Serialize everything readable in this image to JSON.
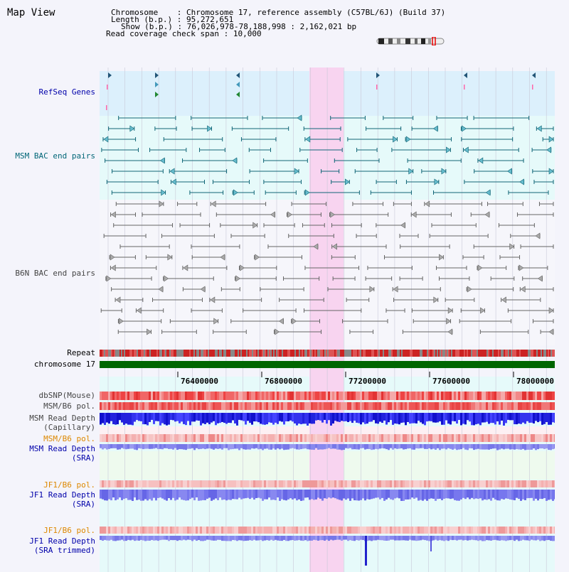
{
  "title": "Map View",
  "header": {
    "chromosome_label": "Chromosome",
    "chromosome_value": "Chromosome 17, reference assembly (C57BL/6J) (Build 37)",
    "length_label": "Length (b.p.)",
    "length_value": "95,272,651",
    "show_label": "Show (b.p.)",
    "show_value": "76,026,978-78,188,998 : 2,162,021 bp",
    "coverage_label": "Read coverage check span",
    "coverage_value": "10,000"
  },
  "tracks": {
    "refseq": "RefSeq Genes",
    "msm_bac": "MSM BAC end pairs",
    "b6n_bac": "B6N BAC end pairs",
    "repeat": "Repeat",
    "chromosome": "chromosome 17",
    "dbsnp": "dbSNP(Mouse)",
    "msm_b6_pol_1": "MSM/B6 pol.",
    "msm_read_depth_cap_1": "MSM Read Depth",
    "msm_read_depth_cap_2": "(Capillary)",
    "msm_b6_pol_2": "MSM/B6 pol.",
    "msm_read_depth_sra_1": "MSM Read Depth",
    "msm_read_depth_sra_2": "(SRA)",
    "jf1_b6_pol_1": "JF1/B6 pol.",
    "jf1_read_depth_sra_1": "JF1 Read Depth",
    "jf1_read_depth_sra_2": "(SRA)",
    "jf1_b6_pol_2": "JF1/B6 pol.",
    "jf1_read_depth_trim_1": "JF1 Read Depth",
    "jf1_read_depth_trim_2": "(SRA trimmed)"
  },
  "axis": {
    "ticks": [
      "76400000",
      "76800000",
      "77200000",
      "77600000",
      "78000000"
    ]
  },
  "colors": {
    "blue_label": "#0000aa",
    "teal_label": "#006677",
    "gray_label": "#444444",
    "orange_label": "#dd8800",
    "highlight": "#f8d4f0",
    "chromosome_bar": "#006600"
  }
}
